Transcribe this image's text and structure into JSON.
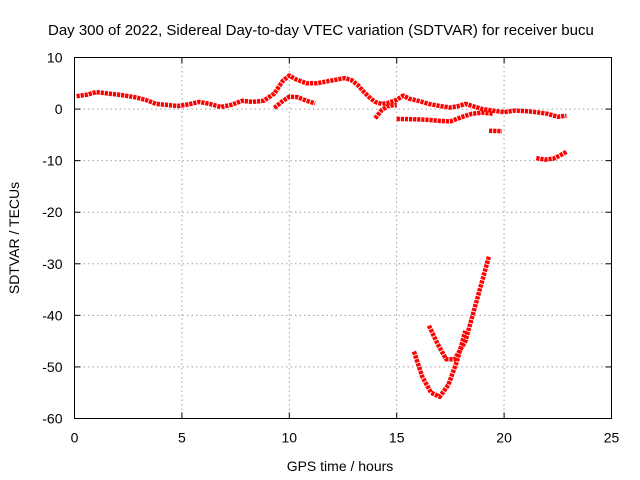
{
  "chart_data": {
    "type": "line",
    "title": "Day 300 of 2022, Sidereal Day-to-day VTEC variation (SDTVAR) for receiver bucu",
    "xlabel": "GPS time / hours",
    "ylabel": "SDTVAR / TECUs",
    "xlim": [
      0,
      25
    ],
    "ylim": [
      -60,
      10
    ],
    "xticks": [
      0,
      5,
      10,
      15,
      20,
      25
    ],
    "yticks": [
      10,
      0,
      -10,
      -20,
      -30,
      -40,
      -50,
      -60
    ],
    "grid": true,
    "color": "#ff0000",
    "series": [
      {
        "name": "main-trace",
        "points": [
          [
            0.1,
            2.5
          ],
          [
            0.6,
            2.8
          ],
          [
            1.0,
            3.3
          ],
          [
            1.6,
            3.0
          ],
          [
            2.2,
            2.7
          ],
          [
            2.8,
            2.3
          ],
          [
            3.3,
            1.8
          ],
          [
            3.8,
            1.0
          ],
          [
            4.3,
            0.8
          ],
          [
            4.8,
            0.6
          ],
          [
            5.3,
            0.9
          ],
          [
            5.8,
            1.4
          ],
          [
            6.3,
            1.0
          ],
          [
            6.8,
            0.4
          ],
          [
            7.3,
            0.8
          ],
          [
            7.8,
            1.6
          ],
          [
            8.3,
            1.4
          ],
          [
            8.8,
            1.6
          ],
          [
            9.3,
            3.0
          ],
          [
            9.7,
            5.5
          ],
          [
            10.0,
            6.5
          ],
          [
            10.3,
            5.8
          ],
          [
            10.8,
            5.0
          ],
          [
            11.3,
            5.0
          ],
          [
            11.8,
            5.4
          ],
          [
            12.3,
            5.8
          ],
          [
            12.6,
            6.0
          ],
          [
            12.9,
            5.6
          ],
          [
            13.2,
            4.6
          ],
          [
            13.5,
            3.2
          ],
          [
            13.8,
            2.0
          ],
          [
            14.0,
            1.4
          ],
          [
            14.3,
            1.0
          ],
          [
            14.6,
            1.2
          ],
          [
            15.0,
            1.8
          ],
          [
            15.3,
            2.6
          ],
          [
            15.6,
            2.0
          ],
          [
            16.0,
            1.6
          ],
          [
            16.5,
            1.0
          ],
          [
            17.0,
            0.6
          ],
          [
            17.5,
            0.3
          ],
          [
            17.8,
            0.5
          ],
          [
            18.2,
            1.0
          ],
          [
            18.6,
            0.5
          ],
          [
            19.0,
            0.0
          ],
          [
            19.5,
            -0.3
          ],
          [
            20.0,
            -0.6
          ],
          [
            20.5,
            -0.3
          ],
          [
            21.0,
            -0.4
          ],
          [
            21.5,
            -0.6
          ],
          [
            22.0,
            -0.9
          ],
          [
            22.5,
            -1.5
          ],
          [
            22.9,
            -1.3
          ]
        ]
      },
      {
        "name": "trace-2",
        "points": [
          [
            9.3,
            0.2
          ],
          [
            9.7,
            1.6
          ],
          [
            10.0,
            2.4
          ],
          [
            10.4,
            2.3
          ],
          [
            10.8,
            1.6
          ],
          [
            11.2,
            1.1
          ]
        ]
      },
      {
        "name": "trace-3",
        "points": [
          [
            14.0,
            -1.8
          ],
          [
            14.3,
            -0.2
          ],
          [
            14.6,
            0.6
          ],
          [
            15.0,
            0.8
          ]
        ]
      },
      {
        "name": "trace-4",
        "points": [
          [
            15.0,
            -1.9
          ],
          [
            16.0,
            -2.0
          ],
          [
            16.5,
            -2.1
          ],
          [
            17.0,
            -2.3
          ],
          [
            17.5,
            -2.4
          ],
          [
            18.0,
            -1.6
          ],
          [
            18.5,
            -0.9
          ],
          [
            19.0,
            -0.7
          ],
          [
            19.5,
            -0.9
          ]
        ]
      },
      {
        "name": "trace-5",
        "points": [
          [
            19.3,
            -4.2
          ],
          [
            19.9,
            -4.3
          ]
        ]
      },
      {
        "name": "trace-6",
        "points": [
          [
            21.5,
            -9.5
          ],
          [
            21.9,
            -9.8
          ],
          [
            22.3,
            -9.6
          ],
          [
            22.6,
            -9.0
          ],
          [
            22.9,
            -8.3
          ]
        ]
      },
      {
        "name": "trace-7",
        "points": [
          [
            15.8,
            -47.0
          ],
          [
            16.2,
            -52.0
          ],
          [
            16.6,
            -55.0
          ],
          [
            17.0,
            -55.8
          ],
          [
            17.4,
            -53.5
          ],
          [
            17.8,
            -49.0
          ],
          [
            18.2,
            -43.0
          ]
        ]
      },
      {
        "name": "trace-8",
        "points": [
          [
            16.5,
            -42.0
          ],
          [
            16.9,
            -45.5
          ],
          [
            17.3,
            -48.5
          ],
          [
            17.7,
            -48.5
          ],
          [
            18.2,
            -45.0
          ],
          [
            18.7,
            -37.5
          ],
          [
            19.3,
            -28.5
          ]
        ]
      }
    ]
  }
}
